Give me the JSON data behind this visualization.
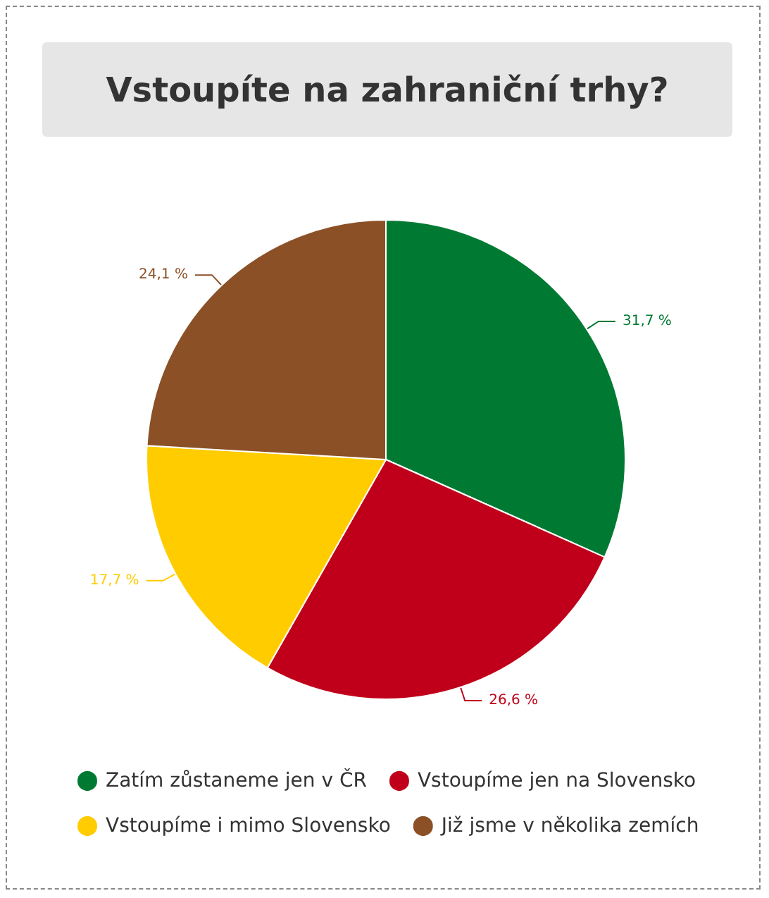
{
  "chart_data": {
    "type": "pie",
    "title": "Vstoupíte na zahraniční trhy?",
    "categories": [
      "Zatím zůstaneme jen v ČR",
      "Vstoupíme jen na Slovensko",
      "Vstoupíme i mimo Slovensko",
      "Již jsme v několika zemích"
    ],
    "values": [
      31.7,
      26.6,
      17.7,
      24.1
    ],
    "value_labels": [
      "31,7 %",
      "26,6 %",
      "17,7 %",
      "24,1 %"
    ],
    "colors": [
      "#007a33",
      "#c0001a",
      "#ffcc00",
      "#8b5026"
    ],
    "legend": "bottom"
  }
}
